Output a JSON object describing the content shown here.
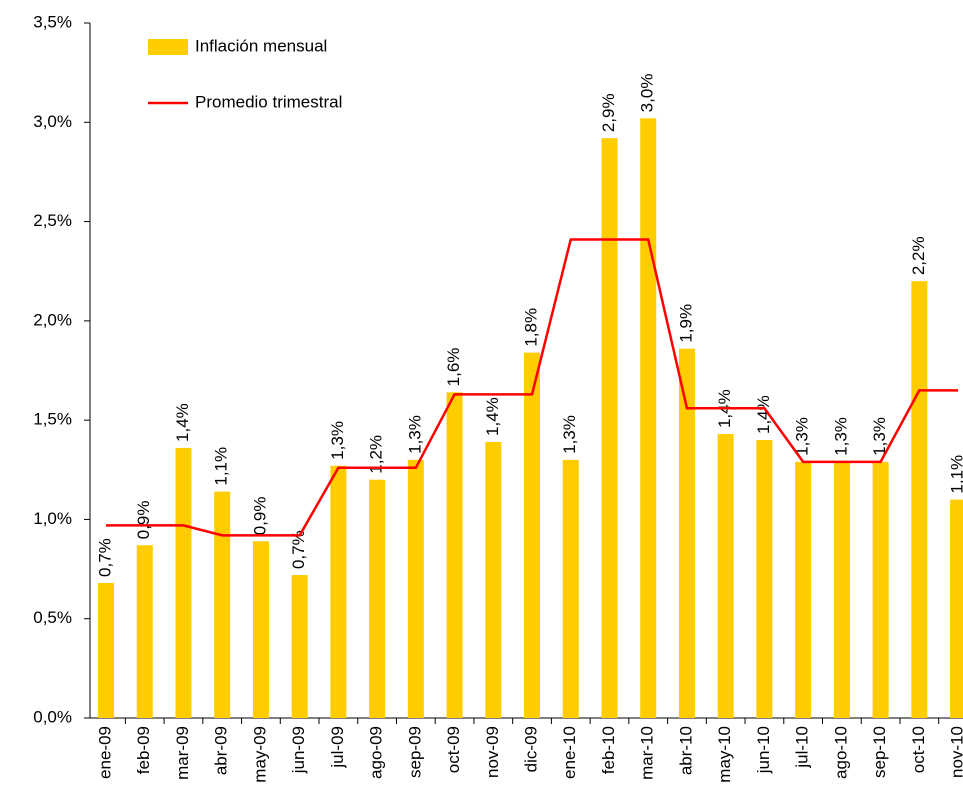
{
  "chart_data": {
    "type": "bar",
    "categories": [
      "ene-09",
      "feb-09",
      "mar-09",
      "abr-09",
      "may-09",
      "jun-09",
      "jul-09",
      "ago-09",
      "sep-09",
      "oct-09",
      "nov-09",
      "dic-09",
      "ene-10",
      "feb-10",
      "mar-10",
      "abr-10",
      "may-10",
      "jun-10",
      "jul-10",
      "ago-10",
      "sep-10",
      "oct-10",
      "nov-10"
    ],
    "series": [
      {
        "name": "Inflación mensual",
        "type": "bar",
        "color": "#ffcc00",
        "values": [
          0.68,
          0.87,
          1.36,
          1.14,
          0.89,
          0.72,
          1.27,
          1.2,
          1.3,
          1.64,
          1.39,
          1.84,
          1.3,
          2.92,
          3.02,
          1.86,
          1.43,
          1.4,
          1.29,
          1.29,
          1.29,
          2.2,
          1.1
        ],
        "value_labels": [
          "0,7%",
          "0,9%",
          "1,4%",
          "1,1%",
          "0,9%",
          "0,7%",
          "1,3%",
          "1,2%",
          "1,3%",
          "1,6%",
          "1,4%",
          "1,8%",
          "1,3%",
          "2,9%",
          "3,0%",
          "1,9%",
          "1,4%",
          "1,4%",
          "1,3%",
          "1,3%",
          "1,3%",
          "2,2%",
          "1,1%"
        ]
      },
      {
        "name": "Promedio trimestral",
        "type": "line",
        "color": "#ff0000",
        "values": [
          0.97,
          0.97,
          0.97,
          0.92,
          0.92,
          0.92,
          1.26,
          1.26,
          1.26,
          1.63,
          1.63,
          1.63,
          2.41,
          2.41,
          2.41,
          1.56,
          1.56,
          1.56,
          1.29,
          1.29,
          1.29,
          1.65,
          1.65
        ]
      }
    ],
    "ylim": [
      0,
      3.5
    ],
    "yticks": [
      {
        "value": 0,
        "label": "0,0%"
      },
      {
        "value": 0.5,
        "label": "0,5%"
      },
      {
        "value": 1,
        "label": "1,0%"
      },
      {
        "value": 1.5,
        "label": "1,5%"
      },
      {
        "value": 2,
        "label": "2,0%"
      },
      {
        "value": 2.5,
        "label": "2,5%"
      },
      {
        "value": 3,
        "label": "3,0%"
      },
      {
        "value": 3.5,
        "label": "3,5%"
      }
    ],
    "grid": false,
    "legend": "top-left"
  }
}
